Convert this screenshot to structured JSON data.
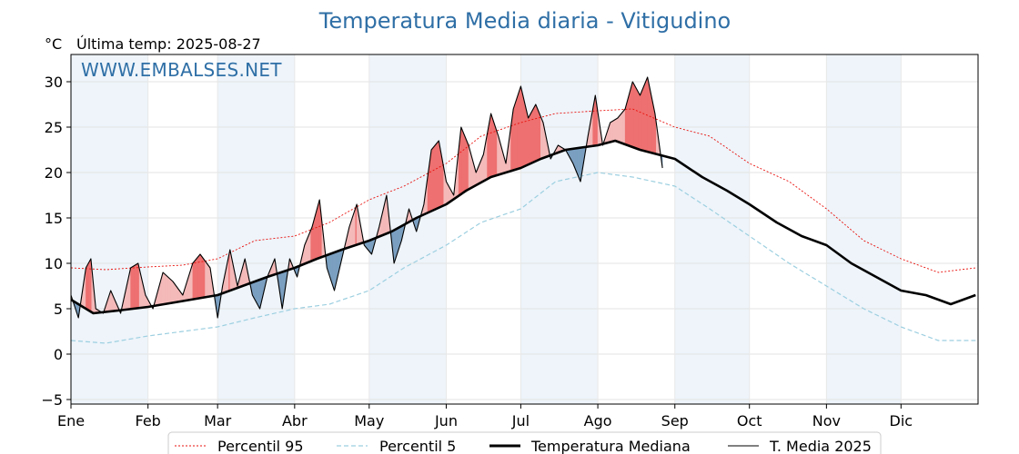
{
  "chart_data": {
    "type": "line",
    "title": "Temperatura Media diaria - Vitigudino",
    "unit_label": "°C",
    "subtitle": "Última temp: 2025-08-27",
    "watermark": "WWW.EMBALSES.NET",
    "ylim": [
      -5.5,
      33
    ],
    "yticks": [
      -5,
      0,
      5,
      10,
      15,
      20,
      25,
      30
    ],
    "ytick_labels": [
      "−5",
      "0",
      "5",
      "10",
      "15",
      "20",
      "25",
      "30"
    ],
    "months": [
      "Ene",
      "Feb",
      "Mar",
      "Abr",
      "May",
      "Jun",
      "Jul",
      "Ago",
      "Sep",
      "Oct",
      "Nov",
      "Dic"
    ],
    "month_start_days": [
      1,
      32,
      60,
      91,
      121,
      152,
      182,
      213,
      244,
      274,
      305,
      335
    ],
    "days_in_year": 365,
    "grid": true,
    "legend_position": "bottom",
    "colors": {
      "p95": "#e8100c",
      "p5": "#9ccfe0",
      "median": "#000000",
      "current": "#000000",
      "fill_above": "#f4b9b9",
      "fill_above_strong": "#ee7070",
      "fill_below": "#7a9fc0",
      "month_band": "#eef4fa"
    },
    "series": [
      {
        "name": "Percentil 95",
        "style": "dotted-red",
        "x": [
          1,
          15,
          32,
          46,
          60,
          75,
          91,
          105,
          121,
          135,
          152,
          166,
          182,
          196,
          213,
          227,
          244,
          258,
          274,
          290,
          305,
          320,
          335,
          350,
          365
        ],
        "y": [
          9.5,
          9.3,
          9.6,
          9.8,
          10.5,
          12.5,
          13.0,
          14.5,
          17.0,
          18.5,
          21.0,
          24.0,
          25.5,
          26.5,
          26.8,
          27.0,
          25.0,
          24.0,
          21.0,
          19.0,
          16.0,
          12.5,
          10.5,
          9.0,
          9.5
        ]
      },
      {
        "name": "Percentil 5",
        "style": "dashed-lightblue",
        "x": [
          1,
          15,
          32,
          46,
          60,
          75,
          91,
          105,
          121,
          135,
          152,
          166,
          182,
          196,
          213,
          227,
          244,
          258,
          274,
          290,
          305,
          320,
          335,
          350,
          365
        ],
        "y": [
          1.5,
          1.2,
          2.0,
          2.5,
          3.0,
          4.0,
          5.0,
          5.5,
          7.0,
          9.5,
          12.0,
          14.5,
          16.0,
          19.0,
          20.0,
          19.5,
          18.5,
          16.0,
          13.0,
          10.0,
          7.5,
          5.0,
          3.0,
          1.5,
          1.5
        ]
      },
      {
        "name": "Temperatura Mediana",
        "style": "thick-black",
        "x": [
          1,
          10,
          20,
          32,
          45,
          60,
          70,
          80,
          91,
          100,
          110,
          121,
          130,
          140,
          152,
          160,
          170,
          182,
          190,
          200,
          213,
          220,
          230,
          244,
          255,
          265,
          274,
          285,
          295,
          305,
          315,
          325,
          335,
          345,
          355,
          365
        ],
        "y": [
          6.0,
          4.5,
          4.8,
          5.2,
          5.8,
          6.5,
          7.5,
          8.5,
          9.5,
          10.5,
          11.5,
          12.5,
          13.5,
          15.0,
          16.5,
          18.0,
          19.5,
          20.5,
          21.5,
          22.5,
          23.0,
          23.5,
          22.5,
          21.5,
          19.5,
          18.0,
          16.5,
          14.5,
          13.0,
          12.0,
          10.0,
          8.5,
          7.0,
          6.5,
          5.5,
          6.5
        ]
      },
      {
        "name": "T. Media 2025",
        "style": "thin-black",
        "x": [
          1,
          4,
          7,
          9,
          11,
          14,
          17,
          21,
          25,
          28,
          31,
          34,
          38,
          42,
          46,
          50,
          53,
          57,
          60,
          62,
          65,
          68,
          71,
          74,
          77,
          80,
          83,
          86,
          89,
          92,
          95,
          98,
          101,
          104,
          107,
          110,
          113,
          116,
          119,
          122,
          125,
          128,
          131,
          134,
          137,
          140,
          143,
          146,
          149,
          152,
          155,
          158,
          161,
          164,
          167,
          170,
          173,
          176,
          179,
          182,
          185,
          188,
          191,
          194,
          197,
          200,
          203,
          206,
          209,
          212,
          215,
          218,
          221,
          224,
          227,
          230,
          233,
          236,
          239
        ],
        "y": [
          6.5,
          4.0,
          9.5,
          10.5,
          5.0,
          4.5,
          7.0,
          4.5,
          9.5,
          10.0,
          6.5,
          5.0,
          9.0,
          8.0,
          6.5,
          10.0,
          11.0,
          9.5,
          4.0,
          7.5,
          11.5,
          7.5,
          10.5,
          6.5,
          5.0,
          8.5,
          10.5,
          5.0,
          10.5,
          8.5,
          12.0,
          14.0,
          17.0,
          9.5,
          7.0,
          10.5,
          14.0,
          16.5,
          12.0,
          11.0,
          14.0,
          17.5,
          10.0,
          12.5,
          16.0,
          13.5,
          16.5,
          22.5,
          23.5,
          19.0,
          17.5,
          25.0,
          23.0,
          20.0,
          22.0,
          26.5,
          24.0,
          21.0,
          27.0,
          29.5,
          26.0,
          27.5,
          25.5,
          21.5,
          23.0,
          22.5,
          21.0,
          19.0,
          24.0,
          28.5,
          23.0,
          25.5,
          26.0,
          27.0,
          30.0,
          28.5,
          30.5,
          26.5,
          20.5
        ]
      }
    ]
  }
}
